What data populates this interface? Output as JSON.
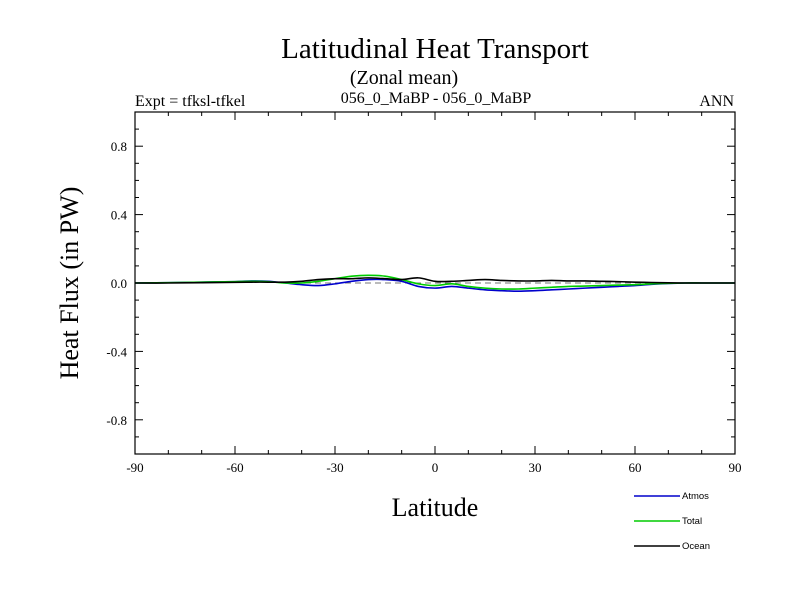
{
  "chart_data": {
    "type": "line",
    "title": "Latitudinal Heat Transport",
    "subtitle": "(Zonal mean)",
    "left_label": "Expt = tfksl-tfkel",
    "center_label": "056_0_MaBP - 056_0_MaBP",
    "right_label": "ANN",
    "xlabel": "Latitude",
    "ylabel": "Heat Flux (in PW)",
    "xlim": [
      -90,
      90
    ],
    "ylim": [
      -1.0,
      1.0
    ],
    "xticks": [
      -90,
      -60,
      -30,
      0,
      30,
      60,
      90
    ],
    "xtick_labels": [
      "-90",
      "-60",
      "-30",
      "0",
      "30",
      "60",
      "90"
    ],
    "yticks": [
      -0.8,
      -0.4,
      0.0,
      0.4,
      0.8
    ],
    "ytick_labels": [
      "-0.8",
      "-0.4",
      "0.0",
      "0.4",
      "0.8"
    ],
    "reference_line": {
      "y": 0.0,
      "style": "dashed",
      "x_range": [
        -45,
        80
      ]
    },
    "x": [
      -90,
      -80,
      -70,
      -60,
      -55,
      -50,
      -45,
      -40,
      -35,
      -30,
      -25,
      -20,
      -15,
      -10,
      -5,
      0,
      5,
      10,
      15,
      20,
      25,
      30,
      35,
      40,
      45,
      50,
      55,
      60,
      65,
      70,
      75,
      80,
      85,
      90
    ],
    "series": [
      {
        "name": "Atmos",
        "color": "#0000cc",
        "values": [
          0.0,
          0.002,
          0.005,
          0.008,
          0.012,
          0.01,
          0.0,
          -0.01,
          -0.015,
          -0.005,
          0.01,
          0.02,
          0.02,
          0.01,
          -0.02,
          -0.03,
          -0.02,
          -0.03,
          -0.04,
          -0.045,
          -0.048,
          -0.045,
          -0.04,
          -0.035,
          -0.03,
          -0.025,
          -0.02,
          -0.015,
          -0.008,
          -0.003,
          0.0,
          0.0,
          0.0,
          0.0
        ]
      },
      {
        "name": "Total",
        "color": "#00cc00",
        "values": [
          0.0,
          0.002,
          0.005,
          0.008,
          0.01,
          0.008,
          0.0,
          0.0,
          0.01,
          0.025,
          0.04,
          0.045,
          0.04,
          0.02,
          -0.005,
          -0.015,
          -0.005,
          -0.02,
          -0.03,
          -0.035,
          -0.035,
          -0.03,
          -0.025,
          -0.02,
          -0.018,
          -0.015,
          -0.012,
          -0.01,
          -0.005,
          -0.002,
          0.0,
          0.0,
          0.0,
          0.0
        ]
      },
      {
        "name": "Ocean",
        "color": "#000000",
        "values": [
          0.0,
          0.0,
          0.002,
          0.004,
          0.005,
          0.005,
          0.005,
          0.01,
          0.02,
          0.025,
          0.025,
          0.03,
          0.025,
          0.02,
          0.03,
          0.01,
          0.01,
          0.015,
          0.02,
          0.015,
          0.012,
          0.012,
          0.015,
          0.012,
          0.012,
          0.01,
          0.008,
          0.005,
          0.003,
          0.001,
          0.0,
          0.0,
          0.0,
          0.0
        ]
      }
    ],
    "legend": {
      "placement": "bottom-right",
      "entries": [
        "Atmos",
        "Total",
        "Ocean"
      ]
    }
  }
}
